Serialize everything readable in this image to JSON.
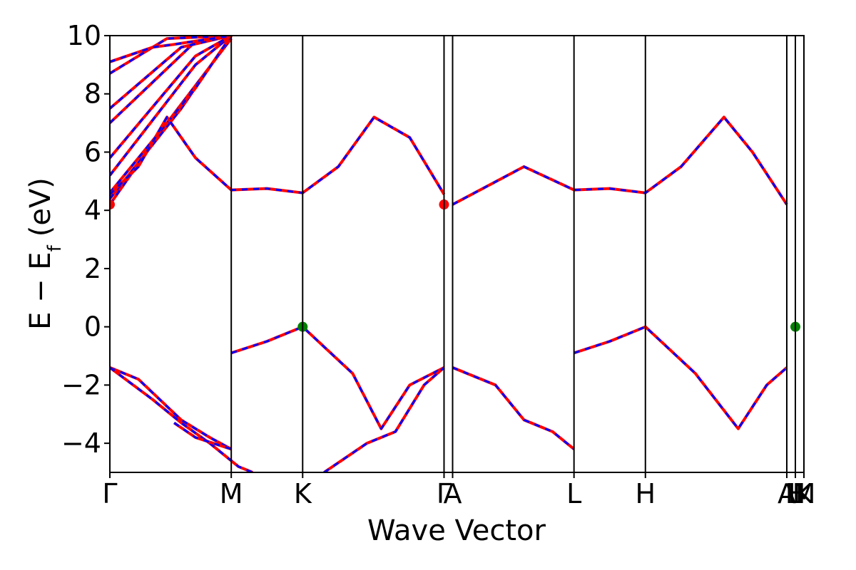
{
  "chart_data": {
    "type": "line",
    "title": "",
    "xlabel": "Wave Vector",
    "ylabel": "E − E",
    "ylabel_sub": "f",
    "ylabel_unit": "(eV)",
    "ylim": [
      -5,
      10
    ],
    "y_ticks": [
      -4,
      -2,
      0,
      2,
      4,
      6,
      8,
      10
    ],
    "y_tick_labels": [
      "−4",
      "−2",
      "0",
      "2",
      "4",
      "6",
      "8",
      "10"
    ],
    "grid": false,
    "legend": "none",
    "x_range": [
      0,
      4.86
    ],
    "k_points": [
      {
        "label": "Γ",
        "x": 0.0
      },
      {
        "label": "M",
        "x": 0.85
      },
      {
        "label": "K",
        "x": 1.35
      },
      {
        "label": "Γ",
        "x": 2.34
      },
      {
        "label": "A",
        "x": 2.4
      },
      {
        "label": "L",
        "x": 3.25
      },
      {
        "label": "H",
        "x": 3.75
      },
      {
        "label": "A",
        "x": 4.74
      },
      {
        "label": "L",
        "x": 4.8
      },
      {
        "label": "M",
        "x": 4.86
      },
      {
        "label": "H",
        "x": 4.8
      },
      {
        "label": "K",
        "x": 4.86
      }
    ],
    "k_lines_x": [
      0.85,
      1.35,
      2.34,
      2.4,
      3.25,
      3.75,
      4.74,
      4.8
    ],
    "colors": {
      "line1": "#ff0000",
      "line2": "#0000ff",
      "vbm": "#008000",
      "cbm": "#ff0000"
    },
    "series": [
      {
        "style": "red-solid-blue-dashed",
        "points": [
          [
            0,
            4.2
          ],
          [
            0.4,
            7.0
          ],
          [
            0.85,
            9.9
          ]
        ]
      },
      {
        "style": "red-solid-blue-dashed",
        "points": [
          [
            0,
            4.4
          ],
          [
            0.5,
            7.5
          ],
          [
            0.85,
            10.0
          ]
        ]
      },
      {
        "style": "red-solid-blue-dashed",
        "points": [
          [
            0,
            4.6
          ],
          [
            0.6,
            8.2
          ],
          [
            0.85,
            10.0
          ]
        ]
      },
      {
        "style": "red-solid-blue-dashed",
        "points": [
          [
            0,
            5.2
          ],
          [
            0.6,
            9.0
          ],
          [
            0.85,
            10.0
          ]
        ]
      },
      {
        "style": "red-solid-blue-dashed",
        "points": [
          [
            0,
            5.8
          ],
          [
            0.6,
            9.3
          ],
          [
            0.85,
            10.0
          ]
        ]
      },
      {
        "style": "red-solid-blue-dashed",
        "points": [
          [
            0,
            7.0
          ],
          [
            0.6,
            9.8
          ],
          [
            0.85,
            10.0
          ]
        ]
      },
      {
        "style": "red-solid-blue-dashed",
        "points": [
          [
            0,
            7.5
          ],
          [
            0.5,
            9.6
          ],
          [
            0.85,
            10.0
          ]
        ]
      },
      {
        "style": "red-solid-blue-dashed",
        "points": [
          [
            0,
            8.7
          ],
          [
            0.4,
            9.9
          ],
          [
            0.85,
            10.0
          ]
        ]
      },
      {
        "style": "red-solid-blue-dashed",
        "points": [
          [
            0,
            9.1
          ],
          [
            0.3,
            9.6
          ],
          [
            0.45,
            9.7
          ],
          [
            0.85,
            10.0
          ]
        ]
      },
      {
        "style": "red-solid-blue-dashed",
        "points": [
          [
            0,
            4.55
          ],
          [
            0.2,
            5.5
          ],
          [
            0.4,
            7.2
          ],
          [
            0.6,
            5.8
          ],
          [
            0.85,
            4.7
          ],
          [
            1.1,
            4.75
          ],
          [
            1.35,
            4.6
          ],
          [
            1.6,
            5.5
          ],
          [
            1.85,
            7.2
          ],
          [
            2.1,
            6.5
          ],
          [
            2.34,
            4.55
          ]
        ]
      },
      {
        "style": "red-solid-blue-dashed",
        "points": [
          [
            0,
            -1.4
          ],
          [
            0.2,
            -1.8
          ],
          [
            0.5,
            -3.2
          ],
          [
            0.7,
            -3.8
          ],
          [
            0.85,
            -4.2
          ]
        ]
      },
      {
        "style": "red-solid-blue-dashed",
        "points": [
          [
            0,
            -1.4
          ],
          [
            0.3,
            -2.5
          ],
          [
            0.5,
            -3.3
          ],
          [
            0.7,
            -4.0
          ],
          [
            0.9,
            -4.8
          ],
          [
            1.0,
            -5.0
          ]
        ]
      },
      {
        "style": "red-solid-blue-dashed",
        "points": [
          [
            0.45,
            -3.3
          ],
          [
            0.6,
            -3.8
          ],
          [
            0.85,
            -4.2
          ]
        ]
      },
      {
        "style": "red-solid-blue-dashed",
        "points": [
          [
            0.85,
            -0.9
          ],
          [
            1.1,
            -0.5
          ],
          [
            1.35,
            0.0
          ],
          [
            1.7,
            -1.6
          ],
          [
            1.9,
            -3.5
          ],
          [
            2.1,
            -2.0
          ],
          [
            2.34,
            -1.4
          ]
        ]
      },
      {
        "style": "red-solid-blue-dashed",
        "points": [
          [
            1.5,
            -5.0
          ],
          [
            1.8,
            -4.0
          ],
          [
            2.0,
            -3.6
          ],
          [
            2.2,
            -2.0
          ],
          [
            2.34,
            -1.4
          ]
        ]
      },
      {
        "style": "red-solid-blue-dashed",
        "points": [
          [
            2.4,
            4.2
          ],
          [
            2.9,
            5.5
          ],
          [
            3.25,
            4.7
          ],
          [
            3.5,
            4.75
          ],
          [
            3.75,
            4.6
          ],
          [
            4.0,
            5.5
          ],
          [
            4.3,
            7.2
          ],
          [
            4.5,
            6.0
          ],
          [
            4.74,
            4.2
          ]
        ]
      },
      {
        "style": "red-solid-blue-dashed",
        "points": [
          [
            2.4,
            -1.4
          ],
          [
            2.7,
            -2.0
          ],
          [
            2.9,
            -3.2
          ],
          [
            3.1,
            -3.6
          ],
          [
            3.25,
            -4.2
          ]
        ]
      },
      {
        "style": "red-solid-blue-dashed",
        "points": [
          [
            3.25,
            -0.9
          ],
          [
            3.5,
            -0.5
          ],
          [
            3.75,
            0.0
          ],
          [
            4.1,
            -1.6
          ],
          [
            4.4,
            -3.5
          ],
          [
            4.6,
            -2.0
          ],
          [
            4.74,
            -1.4
          ]
        ]
      }
    ],
    "markers": [
      {
        "kind": "vbm",
        "x": 1.35,
        "y": 0.0
      },
      {
        "kind": "vbm",
        "x": 4.8,
        "y": 0.0
      },
      {
        "kind": "cbm",
        "x": 0.0,
        "y": 4.2
      },
      {
        "kind": "cbm",
        "x": 2.34,
        "y": 4.2
      }
    ]
  }
}
